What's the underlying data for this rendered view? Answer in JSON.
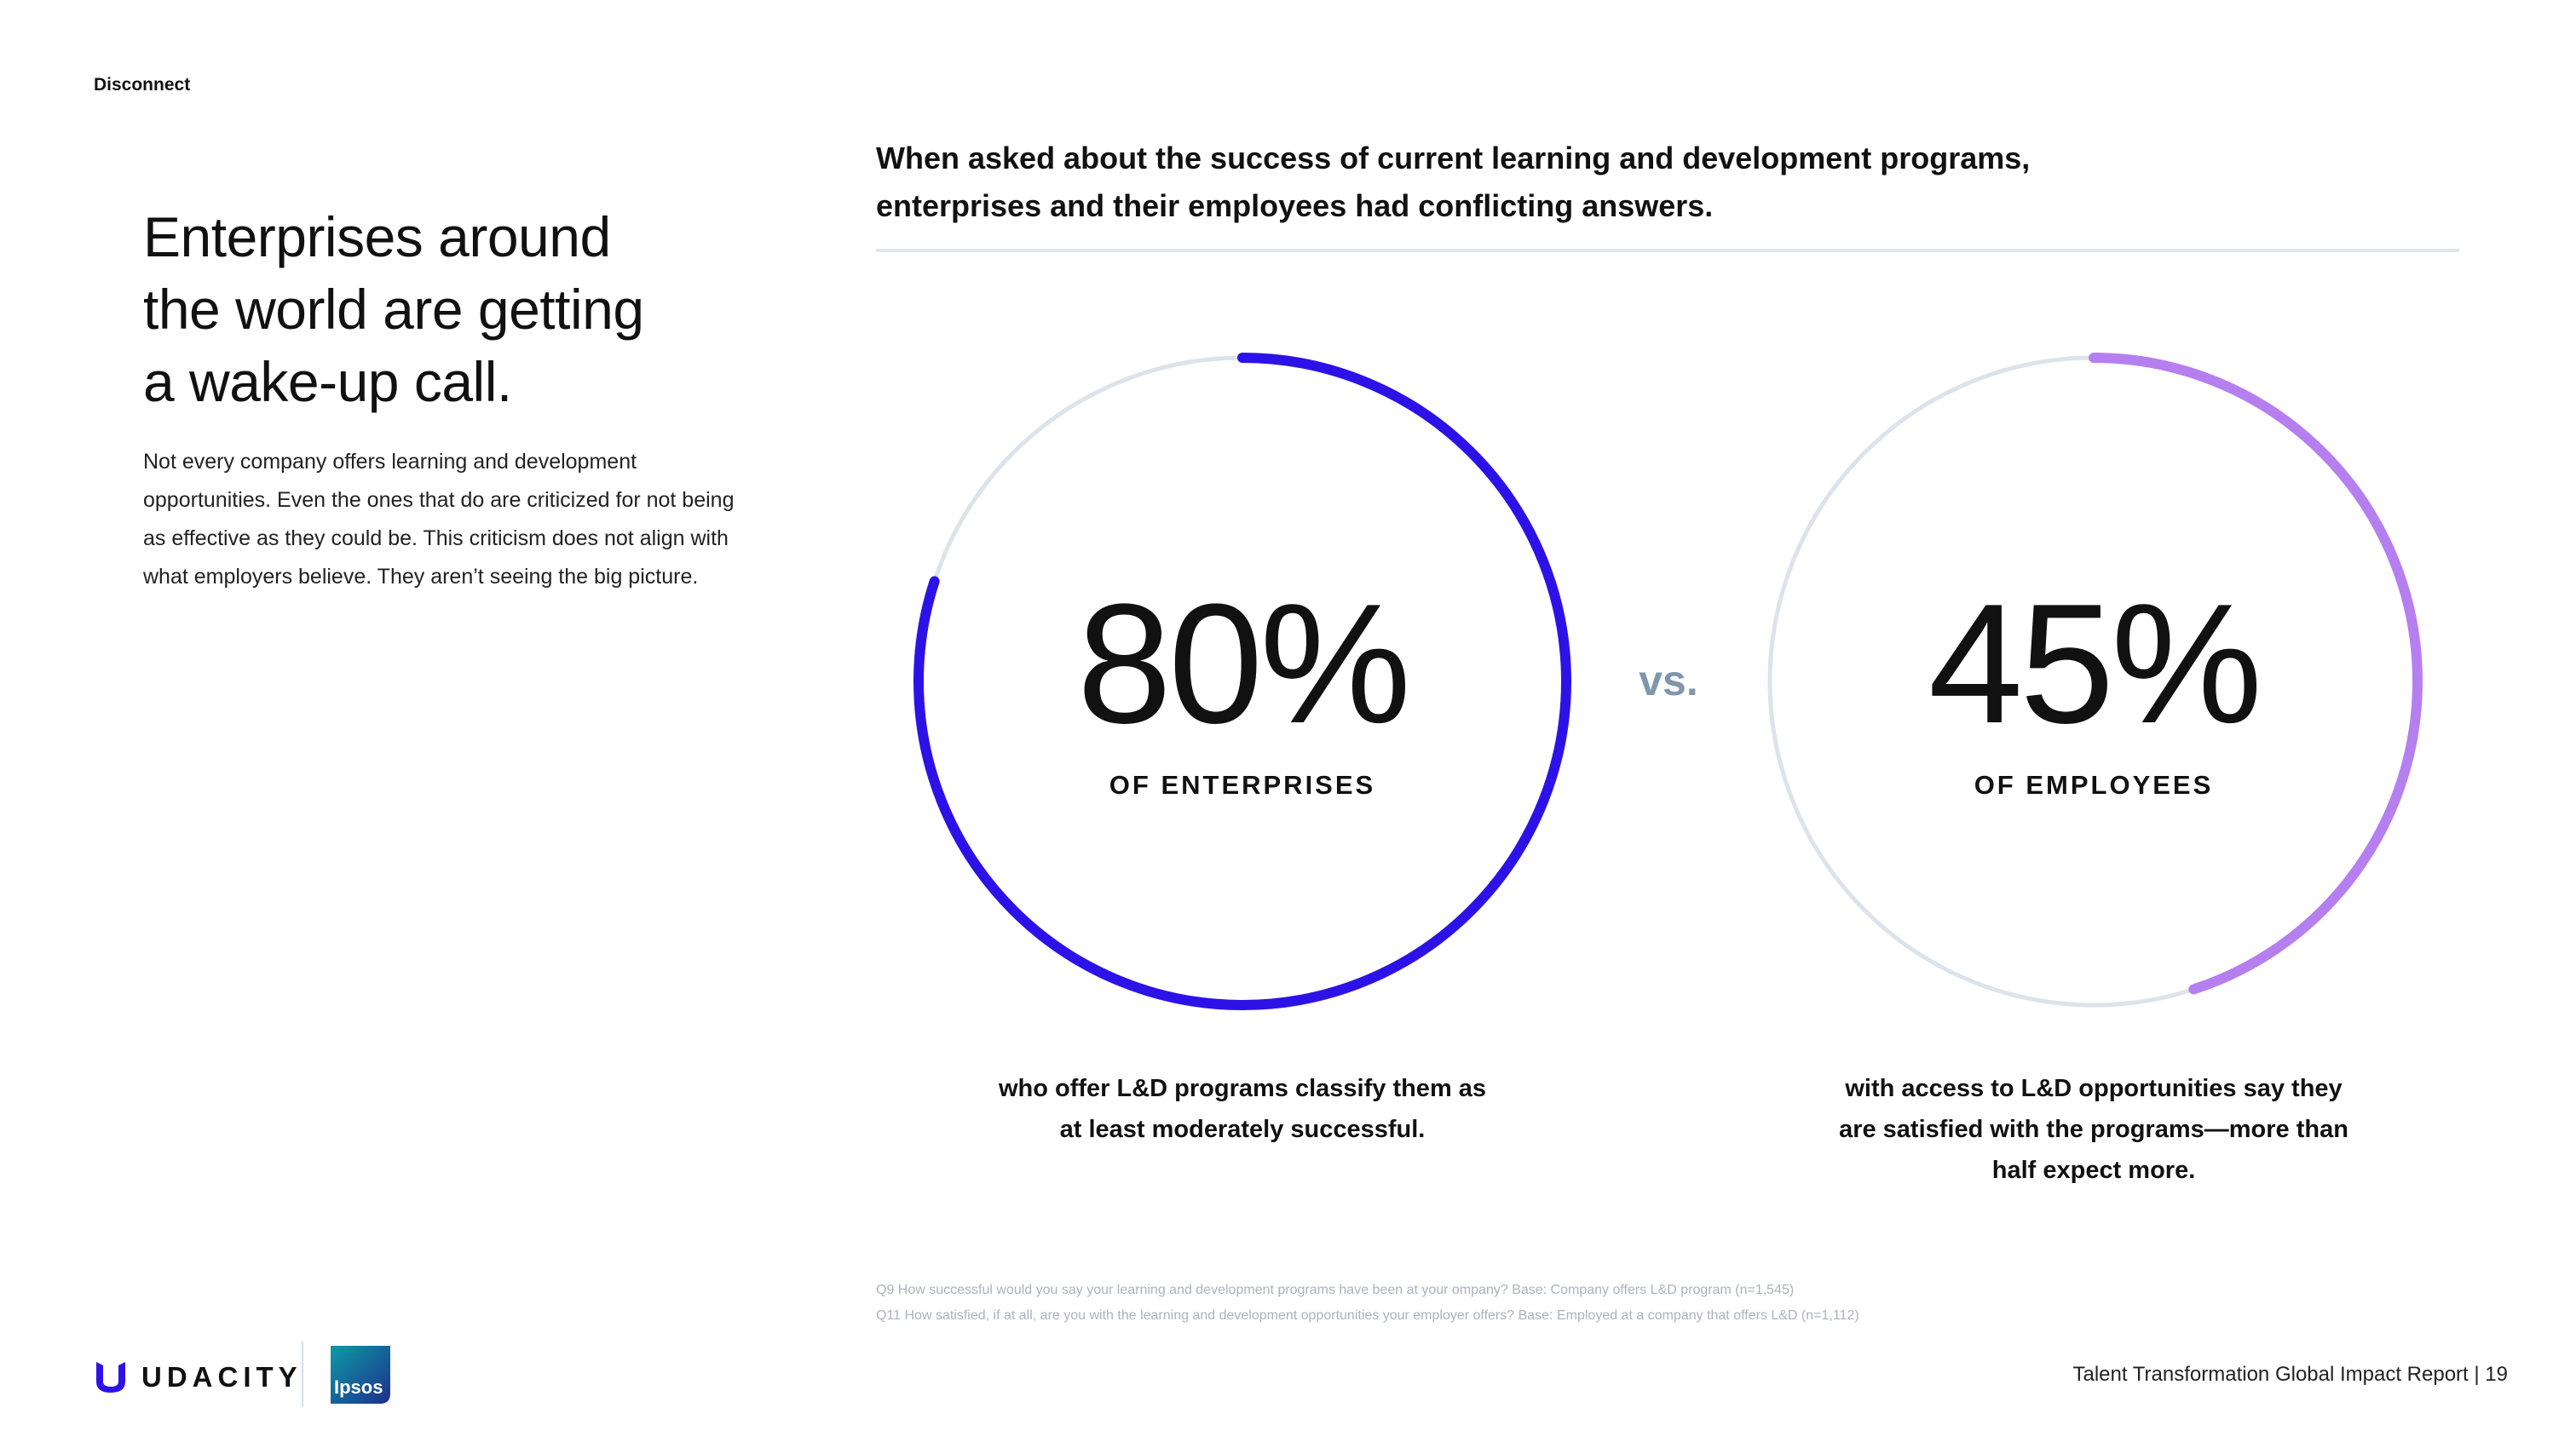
{
  "section_label": "Disconnect",
  "headline": {
    "line1": "Enterprises around",
    "line2": "the world are getting",
    "line3": "a wake-up call."
  },
  "body_text": "Not every company offers learning and development opportunities. Even the ones that do are criticized for not being as effective as they could be. This criticism does not align with what employers believe. They aren’t seeing the big picture.",
  "intro": {
    "line1": "When asked about the success of current learning and development programs,",
    "line2": "enterprises and their employees had conflicting answers."
  },
  "stats": {
    "left": {
      "value_text": "80%",
      "percent": 80,
      "label": "OF ENTERPRISES",
      "caption_line1": "who offer L&D programs classify them as",
      "caption_line2": "at least moderately successful.",
      "color": "#2d12e8"
    },
    "vs": "vs.",
    "right": {
      "value_text": "45%",
      "percent": 45,
      "label": "OF EMPLOYEES",
      "caption_line1": "with access to L&D opportunities say they",
      "caption_line2": "are satisfied with the programs—more than",
      "caption_line3": "half expect more.",
      "color": "#b67ff0"
    },
    "track_color": "#dde3ea"
  },
  "footnotes": {
    "q9": "Q9 How successful would you say your learning and development programs have been at your ompany? Base: Company offers L&D program (n=1,545)",
    "q11": "Q11 How satisfied, if at all, are you with the learning and development opportunities your employer offers? Base: Employed at a company that offers L&D (n=1,112)"
  },
  "logos": {
    "udacity_text": "UDACITY",
    "udacity_icon": "udacity-u-icon",
    "ipsos_text": "Ipsos",
    "udacity_color": "#2d12e8",
    "ipsos_colors": [
      "#0d9aa6",
      "#1e2f8c"
    ]
  },
  "footer": {
    "report_title": "Talent Transformation Global Impact Report",
    "separator": "|",
    "page_number": "19"
  }
}
